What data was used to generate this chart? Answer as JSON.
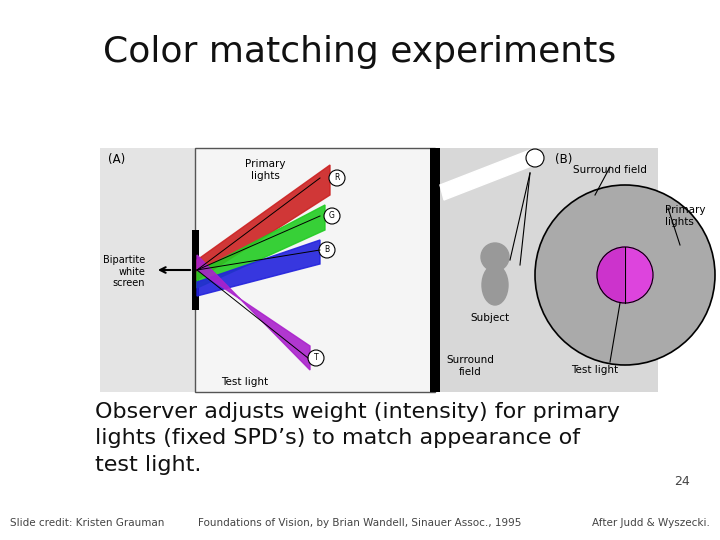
{
  "title": "Color matching experiments",
  "title_fontsize": 26,
  "body_text": "Observer adjusts weight (intensity) for primary\nlights (fixed SPD’s) to match appearance of\ntest light.",
  "body_fontsize": 16,
  "page_number": "24",
  "footer_left": "Slide credit: Kristen Grauman",
  "footer_center": "Foundations of Vision, by Brian Wandell, Sinauer Assoc., 1995",
  "footer_right": "After Judd & Wyszecki.",
  "footer_fontsize": 7.5,
  "bg_color": "#ffffff",
  "diag_bg": "#d8d8d8",
  "panel_a_bg": "#e4e4e4",
  "panel_a_inner_bg": "#f5f5f5"
}
